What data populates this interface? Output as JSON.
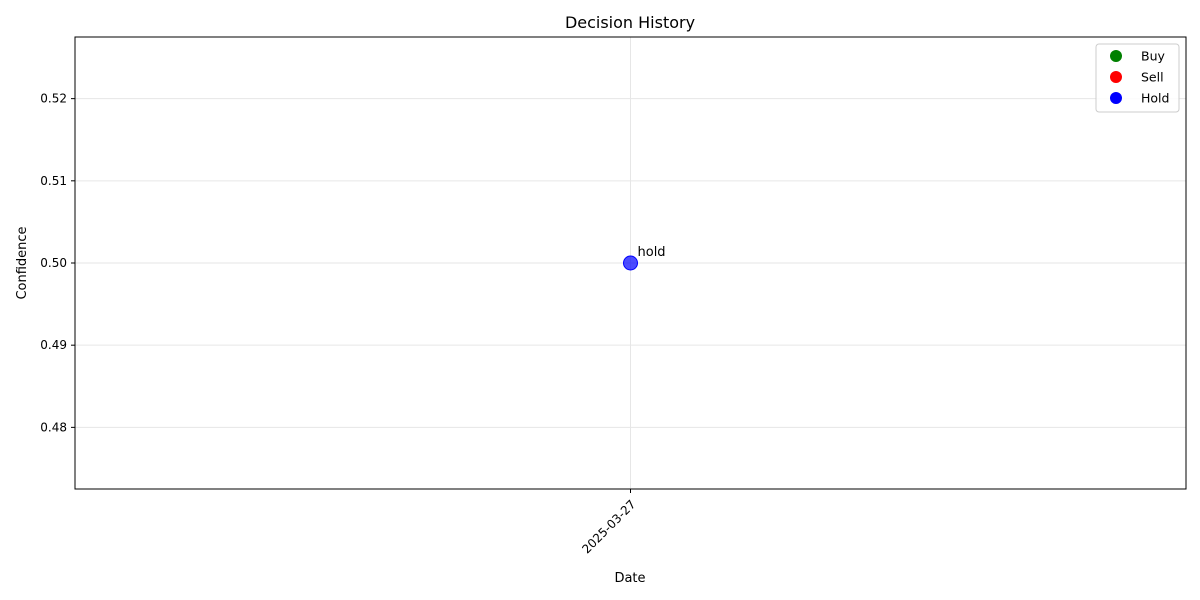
{
  "chart_data": {
    "type": "scatter",
    "title": "Decision History",
    "xlabel": "Date",
    "ylabel": "Confidence",
    "x_categories": [
      "2025-03-27"
    ],
    "ylim": [
      0.4725,
      0.5275
    ],
    "yticks": [
      0.48,
      0.49,
      0.5,
      0.51,
      0.52
    ],
    "ytick_labels": [
      "0.48",
      "0.49",
      "0.50",
      "0.51",
      "0.52"
    ],
    "grid": true,
    "legend_position": "top-right",
    "legend": [
      {
        "label": "Buy",
        "color": "#008000"
      },
      {
        "label": "Sell",
        "color": "#ff0000"
      },
      {
        "label": "Hold",
        "color": "#0000ff"
      }
    ],
    "points": [
      {
        "x": "2025-03-27",
        "y": 0.5,
        "decision": "hold",
        "label": "hold",
        "color": "#0000ff"
      }
    ]
  }
}
